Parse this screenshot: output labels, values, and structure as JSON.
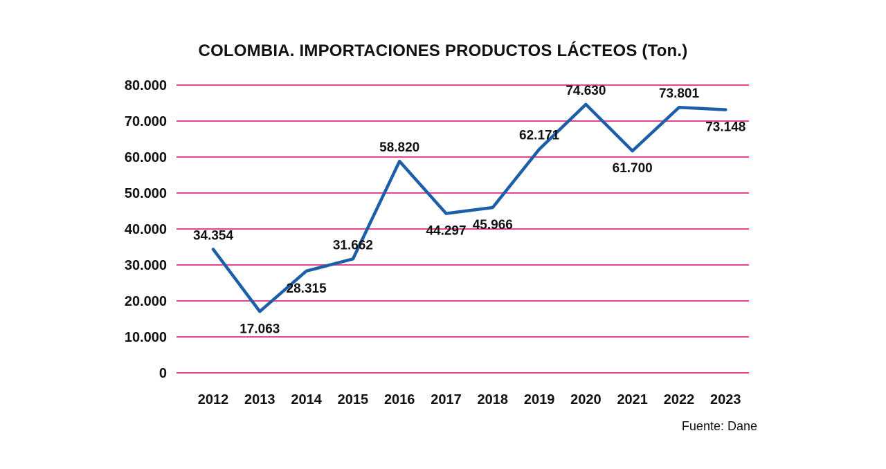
{
  "page": {
    "title": "COLOMBIA. IMPORTACIONES PRODUCTOS LÁCTEOS (Ton.)",
    "source": "Fuente: Dane"
  },
  "colors": {
    "line": "#1c5fa8",
    "grid": "#e84393",
    "text": "#111111"
  },
  "chart_data": {
    "type": "line",
    "title": "COLOMBIA. IMPORTACIONES PRODUCTOS LÁCTEOS (Ton.)",
    "categories": [
      "2012",
      "2013",
      "2014",
      "2015",
      "2016",
      "2017",
      "2018",
      "2019",
      "2020",
      "2021",
      "2022",
      "2023"
    ],
    "values": [
      34354,
      17063,
      28315,
      31662,
      58820,
      44297,
      45966,
      62171,
      74630,
      61700,
      73801,
      73148
    ],
    "value_labels": [
      "34.354",
      "17.063",
      "28.315",
      "31.662",
      "58.820",
      "44.297",
      "45.966",
      "62.171",
      "74.630",
      "61.700",
      "73.801",
      "73.148"
    ],
    "label_positions": [
      "above",
      "below",
      "below",
      "above",
      "above",
      "below",
      "below",
      "above",
      "above",
      "below",
      "above",
      "below"
    ],
    "xlabel": "",
    "ylabel": "",
    "ylim": [
      0,
      80000
    ],
    "ytick_step": 10000,
    "ytick_labels": [
      "0",
      "10.000",
      "20.000",
      "30.000",
      "40.000",
      "50.000",
      "60.000",
      "70.000",
      "80.000"
    ],
    "grid": "horizontal",
    "legend": "none",
    "source": "Fuente: Dane"
  }
}
